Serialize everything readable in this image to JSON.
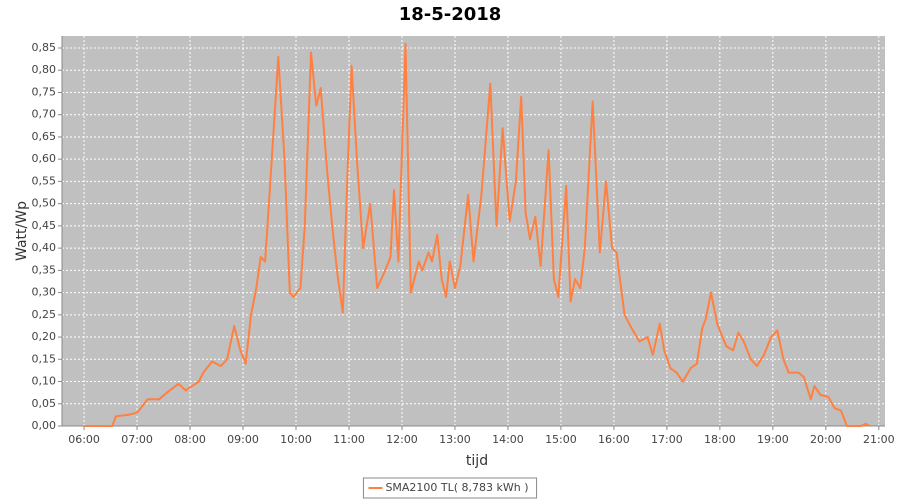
{
  "chart_data": {
    "type": "line",
    "title": "18-5-2018",
    "x_label": "tijd",
    "y_label": "Watt/Wp",
    "xlim": [
      "05:35",
      "21:07"
    ],
    "xticks": [
      "06:00",
      "07:00",
      "08:00",
      "09:00",
      "10:00",
      "11:00",
      "12:00",
      "13:00",
      "14:00",
      "15:00",
      "16:00",
      "17:00",
      "18:00",
      "19:00",
      "20:00",
      "21:00"
    ],
    "ylim": [
      0,
      0.877
    ],
    "yticks": [
      {
        "value": 0,
        "label": "0,00"
      },
      {
        "value": 0.05,
        "label": "0,05"
      },
      {
        "value": 0.1,
        "label": "0,10"
      },
      {
        "value": 0.15,
        "label": "0,15"
      },
      {
        "value": 0.2,
        "label": "0,20"
      },
      {
        "value": 0.25,
        "label": "0,25"
      },
      {
        "value": 0.3,
        "label": "0,30"
      },
      {
        "value": 0.35,
        "label": "0,35"
      },
      {
        "value": 0.4,
        "label": "0,40"
      },
      {
        "value": 0.45,
        "label": "0,45"
      },
      {
        "value": 0.5,
        "label": "0,50"
      },
      {
        "value": 0.55,
        "label": "0,55"
      },
      {
        "value": 0.6,
        "label": "0,60"
      },
      {
        "value": 0.65,
        "label": "0,65"
      },
      {
        "value": 0.7,
        "label": "0,70"
      },
      {
        "value": 0.75,
        "label": "0,75"
      },
      {
        "value": 0.8,
        "label": "0,80"
      },
      {
        "value": 0.85,
        "label": "0,85"
      }
    ],
    "grid": true,
    "legend_position": "bottom",
    "series": [
      {
        "name": "SMA2100 TL( 8,783 kWh )",
        "color": "#ff8040",
        "x": [
          "06:00",
          "06:32",
          "06:36",
          "06:50",
          "07:00",
          "07:12",
          "07:25",
          "07:37",
          "07:47",
          "07:55",
          "08:10",
          "08:15",
          "08:25",
          "08:35",
          "08:42",
          "08:50",
          "08:57",
          "09:03",
          "09:09",
          "09:15",
          "09:20",
          "09:25",
          "09:30",
          "09:40",
          "09:47",
          "09:53",
          "09:57",
          "10:05",
          "10:10",
          "10:17",
          "10:23",
          "10:28",
          "10:35",
          "10:41",
          "10:47",
          "10:53",
          "10:58",
          "11:03",
          "11:09",
          "11:16",
          "11:24",
          "11:32",
          "11:41",
          "11:47",
          "11:51",
          "11:56",
          "12:04",
          "12:10",
          "12:19",
          "12:23",
          "12:30",
          "12:34",
          "12:40",
          "12:45",
          "12:50",
          "12:54",
          "13:00",
          "13:06",
          "13:15",
          "13:21",
          "13:30",
          "13:40",
          "13:47",
          "13:54",
          "14:02",
          "14:09",
          "14:15",
          "14:20",
          "14:25",
          "14:31",
          "14:37",
          "14:46",
          "14:52",
          "14:57",
          "15:06",
          "15:11",
          "15:16",
          "15:22",
          "15:27",
          "15:36",
          "15:44",
          "15:51",
          "15:58",
          "16:03",
          "16:12",
          "16:20",
          "16:29",
          "16:38",
          "16:44",
          "16:52",
          "16:57",
          "17:04",
          "17:11",
          "17:18",
          "17:27",
          "17:34",
          "17:40",
          "17:44",
          "17:50",
          "17:57",
          "18:07",
          "18:15",
          "18:21",
          "18:27",
          "18:35",
          "18:42",
          "18:50",
          "18:58",
          "19:05",
          "19:12",
          "19:18",
          "19:29",
          "19:35",
          "19:43",
          "19:47",
          "19:54",
          "20:03",
          "20:10",
          "20:17",
          "20:24",
          "20:40",
          "20:45",
          "20:50"
        ],
        "values": [
          0,
          0,
          0.022,
          0.025,
          0.03,
          0.06,
          0.06,
          0.08,
          0.095,
          0.08,
          0.1,
          0.12,
          0.145,
          0.135,
          0.15,
          0.225,
          0.17,
          0.14,
          0.25,
          0.31,
          0.38,
          0.37,
          0.52,
          0.83,
          0.6,
          0.3,
          0.29,
          0.31,
          0.45,
          0.84,
          0.72,
          0.76,
          0.58,
          0.45,
          0.34,
          0.255,
          0.55,
          0.81,
          0.6,
          0.4,
          0.5,
          0.31,
          0.35,
          0.38,
          0.53,
          0.37,
          0.86,
          0.3,
          0.37,
          0.35,
          0.39,
          0.37,
          0.43,
          0.33,
          0.29,
          0.37,
          0.31,
          0.36,
          0.52,
          0.37,
          0.52,
          0.77,
          0.45,
          0.67,
          0.46,
          0.55,
          0.74,
          0.48,
          0.42,
          0.47,
          0.36,
          0.62,
          0.33,
          0.29,
          0.54,
          0.28,
          0.33,
          0.31,
          0.4,
          0.73,
          0.39,
          0.55,
          0.4,
          0.39,
          0.25,
          0.22,
          0.19,
          0.2,
          0.16,
          0.23,
          0.17,
          0.13,
          0.12,
          0.1,
          0.13,
          0.14,
          0.22,
          0.24,
          0.3,
          0.23,
          0.18,
          0.17,
          0.21,
          0.19,
          0.15,
          0.135,
          0.16,
          0.2,
          0.215,
          0.15,
          0.12,
          0.12,
          0.11,
          0.06,
          0.09,
          0.07,
          0.065,
          0.04,
          0.035,
          0,
          0,
          0.005,
          0
        ]
      }
    ]
  }
}
